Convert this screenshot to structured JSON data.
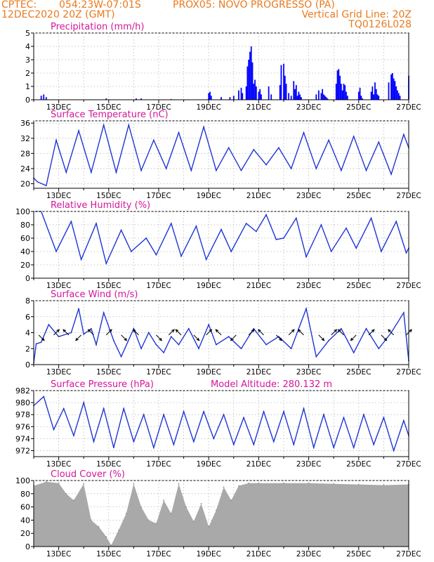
{
  "header": {
    "source": "CPTEC:",
    "coords": "054:23W-07:01S",
    "station": "PROX05: NOVO PROGRESSO (PA)",
    "run_time": "12DEC2020 20Z (GMT)",
    "grid_note": "Vertical Grid Line: 20Z",
    "model_id": "TQ0126L028"
  },
  "x_ticks": [
    "13DEC",
    "15DEC",
    "17DEC",
    "19DEC",
    "21DEC",
    "23DEC",
    "25DEC",
    "27DEC"
  ],
  "chart_data": [
    {
      "type": "bar",
      "title": "Precipitation (mm/h)",
      "ylim": [
        0,
        5
      ],
      "yticks": [
        0,
        1,
        2,
        3,
        4,
        5
      ],
      "color": "#0000ff",
      "x_days": [
        12.3,
        12.4,
        12.5,
        14.9,
        16.1,
        16.3,
        17.5,
        19.0,
        19.05,
        19.1,
        19.5,
        19.85,
        20.0,
        20.2,
        20.3,
        20.35,
        20.5,
        20.55,
        20.6,
        20.65,
        20.7,
        20.75,
        20.8,
        20.85,
        20.9,
        21.0,
        21.05,
        21.1,
        21.4,
        21.5,
        21.85,
        21.9,
        22.0,
        22.05,
        22.1,
        22.2,
        22.3,
        22.4,
        22.45,
        22.5,
        22.55,
        22.6,
        22.65,
        22.7,
        23.3,
        23.4,
        23.5,
        23.55,
        23.6,
        23.65,
        23.7,
        23.75,
        24.1,
        24.15,
        24.2,
        24.25,
        24.3,
        24.35,
        24.4,
        24.45,
        24.5,
        24.55,
        25.0,
        25.05,
        25.1,
        25.15,
        25.5,
        25.55,
        25.6,
        25.65,
        25.7,
        25.75,
        25.8,
        26.2,
        26.3,
        26.35,
        26.4,
        26.45,
        26.5,
        26.55,
        26.6,
        26.65,
        27.0
      ],
      "values": [
        0.3,
        0.4,
        0.2,
        0.1,
        0.1,
        0.1,
        0.05,
        0.5,
        0.6,
        0.3,
        0.2,
        0.2,
        0.3,
        0.7,
        0.9,
        0.5,
        1.0,
        2.5,
        3.0,
        3.6,
        4.0,
        2.8,
        1.2,
        1.5,
        1.0,
        0.6,
        0.8,
        0.4,
        1.0,
        0.4,
        1.1,
        2.6,
        2.7,
        1.8,
        1.2,
        0.5,
        0.3,
        1.4,
        0.8,
        1.1,
        0.3,
        0.6,
        0.4,
        0.2,
        0.4,
        0.7,
        0.5,
        0.8,
        0.4,
        0.3,
        0.2,
        0.1,
        1.2,
        2.2,
        2.3,
        1.8,
        1.2,
        0.7,
        1.2,
        1.1,
        0.6,
        0.3,
        0.6,
        0.9,
        0.3,
        0.1,
        0.6,
        1.0,
        0.4,
        1.3,
        0.8,
        0.4,
        0.3,
        1.3,
        1.9,
        2.0,
        1.6,
        1.4,
        1.0,
        0.7,
        0.5,
        0.3,
        1.8
      ]
    },
    {
      "type": "line",
      "title": "Surface Temperature (nC)",
      "ylim": [
        18.8,
        36.6
      ],
      "yticks": [
        20,
        24,
        28,
        32,
        36
      ],
      "color": "#1f35d6",
      "x_days": [
        12.0,
        12.15,
        12.5,
        12.9,
        13.3,
        13.8,
        14.3,
        14.8,
        15.3,
        15.8,
        16.3,
        16.8,
        17.3,
        17.8,
        18.3,
        18.8,
        19.3,
        19.8,
        20.3,
        20.8,
        21.3,
        21.8,
        22.3,
        22.8,
        23.3,
        23.8,
        24.3,
        24.8,
        25.3,
        25.8,
        26.3,
        26.8,
        27.0
      ],
      "values": [
        21.5,
        20.5,
        19.5,
        31.5,
        23.0,
        34.0,
        23.0,
        35.5,
        23.0,
        35.5,
        23.5,
        31.5,
        24.0,
        33.5,
        23.5,
        35.0,
        23.5,
        29.5,
        23.5,
        29.0,
        25.0,
        29.5,
        24.0,
        33.5,
        24.0,
        31.5,
        23.5,
        32.5,
        23.5,
        31.0,
        22.5,
        33.0,
        29.5
      ]
    },
    {
      "type": "line",
      "title": "Relative Humidity (%)",
      "ylim": [
        0,
        100
      ],
      "yticks": [
        0,
        20,
        40,
        60,
        80,
        100
      ],
      "color": "#1f35d6",
      "x_days": [
        12.0,
        12.3,
        12.9,
        13.5,
        13.9,
        14.5,
        14.9,
        15.5,
        15.9,
        16.5,
        16.9,
        17.5,
        17.9,
        18.5,
        18.9,
        19.5,
        19.9,
        20.5,
        20.9,
        21.3,
        21.7,
        22.0,
        22.5,
        22.9,
        23.5,
        23.9,
        24.5,
        24.9,
        25.5,
        25.9,
        26.5,
        26.9,
        27.0
      ],
      "values": [
        100,
        100,
        40,
        85,
        28,
        82,
        22,
        72,
        40,
        60,
        35,
        82,
        33,
        78,
        28,
        73,
        40,
        82,
        70,
        95,
        58,
        60,
        90,
        32,
        80,
        40,
        75,
        45,
        90,
        40,
        85,
        38,
        45
      ]
    },
    {
      "type": "line",
      "title": "Surface Wind (m/s)",
      "ylim": [
        0,
        8
      ],
      "yticks": [
        0,
        2,
        4,
        6,
        8
      ],
      "color": "#1f35d6",
      "x_days": [
        12.0,
        12.1,
        12.3,
        12.6,
        13.0,
        13.5,
        13.8,
        14.0,
        14.3,
        14.5,
        14.8,
        15.2,
        15.5,
        16.0,
        16.3,
        16.6,
        16.9,
        17.2,
        17.5,
        17.8,
        18.2,
        18.6,
        19.0,
        19.3,
        19.8,
        20.3,
        20.8,
        21.3,
        21.8,
        22.3,
        22.9,
        23.3,
        23.8,
        24.3,
        24.8,
        25.3,
        25.8,
        26.3,
        26.8,
        27.0
      ],
      "values": [
        0.2,
        2.6,
        2.8,
        5.0,
        3.5,
        4.0,
        7.0,
        3.8,
        4.5,
        2.5,
        6.5,
        3.0,
        1.0,
        4.5,
        2.0,
        4.0,
        2.5,
        1.5,
        3.5,
        2.5,
        4.5,
        2.0,
        5.0,
        2.5,
        3.5,
        2.0,
        4.5,
        2.5,
        3.5,
        2.0,
        7.0,
        1.0,
        3.0,
        4.5,
        1.5,
        4.5,
        2.0,
        4.0,
        6.5,
        0.5
      ],
      "vector_days": [
        12.2,
        12.8,
        13.4,
        13.9,
        14.4,
        14.9,
        15.5,
        16.2,
        16.9,
        17.4,
        17.9,
        18.4,
        18.9,
        19.5,
        20.1,
        20.6,
        21.2,
        21.7,
        22.2,
        22.8,
        23.4,
        23.9,
        24.4,
        24.9,
        25.4,
        25.9,
        26.4,
        26.9
      ],
      "vector_u": [
        1,
        1,
        -1,
        -1,
        -1,
        1,
        1,
        -1,
        1,
        1,
        -1,
        1,
        1,
        -1,
        -1,
        1,
        -1,
        1,
        1,
        -1,
        1,
        1,
        -1,
        -1,
        1,
        1,
        -1,
        1
      ],
      "vector_v": [
        -1,
        1,
        1,
        -1,
        1,
        1,
        -1,
        1,
        -1,
        1,
        1,
        -1,
        1,
        1,
        -1,
        1,
        1,
        -1,
        1,
        1,
        -1,
        1,
        1,
        -1,
        1,
        -1,
        1,
        1
      ]
    },
    {
      "type": "line",
      "title": "Surface Pressure (hPa)",
      "subtitle": "Model Altitude: 280.132 m",
      "ylim": [
        971,
        982
      ],
      "yticks": [
        972,
        974,
        976,
        978,
        980,
        982
      ],
      "color": "#1f35d6",
      "x_days": [
        12.0,
        12.4,
        12.8,
        13.2,
        13.6,
        14.0,
        14.4,
        14.8,
        15.2,
        15.6,
        16.0,
        16.4,
        16.8,
        17.2,
        17.6,
        18.0,
        18.4,
        18.8,
        19.2,
        19.6,
        20.0,
        20.4,
        20.8,
        21.2,
        21.6,
        22.0,
        22.4,
        22.8,
        23.2,
        23.6,
        24.0,
        24.4,
        24.8,
        25.2,
        25.6,
        26.0,
        26.4,
        26.8,
        27.0
      ],
      "values": [
        979.5,
        981.0,
        975.5,
        979.0,
        974.5,
        980.0,
        973.5,
        979.0,
        972.5,
        979.0,
        973.5,
        978.0,
        972.5,
        978.0,
        973.0,
        978.5,
        973.5,
        978.5,
        974.0,
        978.0,
        973.0,
        977.5,
        973.0,
        978.5,
        973.5,
        978.5,
        973.0,
        979.0,
        972.5,
        978.0,
        972.5,
        977.5,
        972.5,
        978.0,
        973.0,
        977.5,
        972.0,
        977.0,
        974.5
      ]
    },
    {
      "type": "area",
      "title": "Cloud Cover (%)",
      "ylim": [
        0,
        100
      ],
      "yticks": [
        0,
        20,
        40,
        60,
        80,
        100
      ],
      "color": "#a9a9a9",
      "x_days": [
        12.0,
        12.5,
        13.0,
        13.3,
        13.6,
        14.0,
        14.3,
        14.6,
        14.9,
        15.1,
        15.4,
        15.7,
        16.0,
        16.3,
        16.6,
        16.9,
        17.2,
        17.5,
        17.8,
        18.1,
        18.4,
        18.7,
        19.0,
        19.3,
        19.6,
        19.9,
        20.2,
        20.6,
        21.0,
        22.0,
        23.0,
        24.0,
        25.0,
        26.0,
        27.0
      ],
      "values": [
        92,
        98,
        96,
        80,
        70,
        95,
        40,
        30,
        15,
        2,
        25,
        50,
        95,
        60,
        40,
        35,
        70,
        50,
        95,
        60,
        38,
        65,
        30,
        55,
        90,
        70,
        92,
        96,
        96,
        96,
        96,
        95,
        94,
        93,
        94
      ]
    }
  ]
}
